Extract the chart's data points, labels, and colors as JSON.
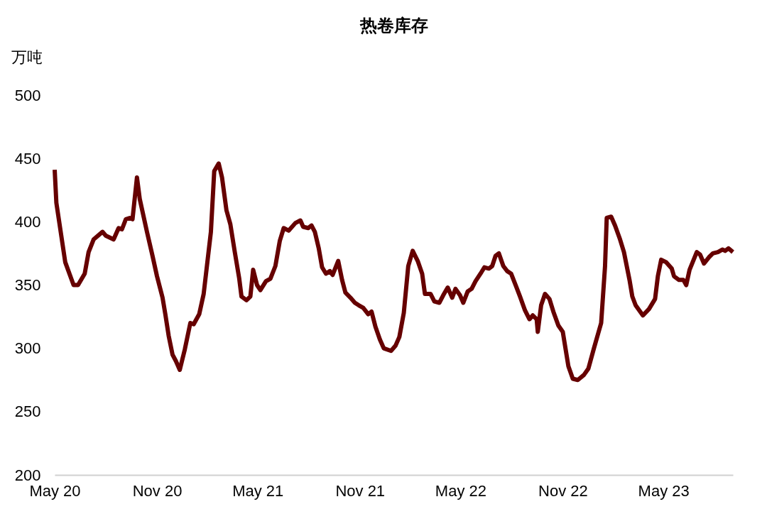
{
  "chart_data": {
    "type": "line",
    "title": "热卷库存",
    "ylabel": "万吨",
    "x": [
      "2020-05-01",
      "2020-05-04",
      "2020-05-20",
      "2020-06-04",
      "2020-06-12",
      "2020-06-24",
      "2020-07-01",
      "2020-07-10",
      "2020-07-26",
      "2020-08-01",
      "2020-08-15",
      "2020-08-24",
      "2020-08-30",
      "2020-09-06",
      "2020-09-13",
      "2020-09-18",
      "2020-09-26",
      "2020-10-01",
      "2020-10-14",
      "2020-10-24",
      "2020-11-01",
      "2020-11-11",
      "2020-11-16",
      "2020-11-22",
      "2020-11-29",
      "2020-12-05",
      "2020-12-12",
      "2020-12-21",
      "2020-12-31",
      "2021-01-06",
      "2021-01-16",
      "2021-01-24",
      "2021-02-06",
      "2021-02-12",
      "2021-02-20",
      "2021-02-26",
      "2021-03-06",
      "2021-03-13",
      "2021-03-21",
      "2021-03-29",
      "2021-04-02",
      "2021-04-11",
      "2021-04-18",
      "2021-04-23",
      "2021-04-30",
      "2021-05-06",
      "2021-05-16",
      "2021-05-24",
      "2021-06-02",
      "2021-06-10",
      "2021-06-17",
      "2021-06-26",
      "2021-07-08",
      "2021-07-17",
      "2021-07-22",
      "2021-07-31",
      "2021-08-06",
      "2021-08-12",
      "2021-08-19",
      "2021-08-25",
      "2021-09-01",
      "2021-09-08",
      "2021-09-13",
      "2021-09-23",
      "2021-09-30",
      "2021-10-06",
      "2021-10-15",
      "2021-10-23",
      "2021-10-30",
      "2021-11-07",
      "2021-11-16",
      "2021-11-22",
      "2021-11-29",
      "2021-12-07",
      "2021-12-14",
      "2021-12-27",
      "2022-01-04",
      "2022-01-11",
      "2022-01-19",
      "2022-01-27",
      "2022-02-04",
      "2022-02-13",
      "2022-02-21",
      "2022-02-26",
      "2022-03-08",
      "2022-03-15",
      "2022-03-24",
      "2022-03-31",
      "2022-04-08",
      "2022-04-16",
      "2022-04-22",
      "2022-04-30",
      "2022-05-06",
      "2022-05-14",
      "2022-05-21",
      "2022-05-28",
      "2022-06-06",
      "2022-06-13",
      "2022-06-21",
      "2022-06-27",
      "2022-07-03",
      "2022-07-09",
      "2022-07-17",
      "2022-07-24",
      "2022-07-31",
      "2022-08-09",
      "2022-08-16",
      "2022-08-25",
      "2022-09-02",
      "2022-09-08",
      "2022-09-15",
      "2022-09-17",
      "2022-09-23",
      "2022-09-30",
      "2022-10-08",
      "2022-10-15",
      "2022-10-24",
      "2022-11-01",
      "2022-11-11",
      "2022-11-19",
      "2022-11-28",
      "2022-12-09",
      "2022-12-17",
      "2022-12-27",
      "2023-01-09",
      "2023-01-16",
      "2023-01-19",
      "2023-01-27",
      "2023-02-03",
      "2023-02-12",
      "2023-02-19",
      "2023-03-01",
      "2023-03-06",
      "2023-03-12",
      "2023-03-25",
      "2023-04-05",
      "2023-04-16",
      "2023-04-21",
      "2023-04-27",
      "2023-05-06",
      "2023-05-16",
      "2023-05-20",
      "2023-05-29",
      "2023-06-06",
      "2023-06-11",
      "2023-06-17",
      "2023-06-30",
      "2023-07-06",
      "2023-07-13",
      "2023-07-22",
      "2023-07-29",
      "2023-08-07",
      "2023-08-15",
      "2023-08-20",
      "2023-08-26",
      "2023-09-03"
    ],
    "series": [
      {
        "color": "#660000",
        "values": [
          441,
          415,
          368,
          350,
          350,
          359,
          376,
          386,
          392,
          389,
          386,
          395,
          394,
          402,
          403,
          402,
          435,
          418,
          392,
          373,
          357,
          340,
          327,
          310,
          295,
          290,
          283,
          299,
          320,
          319,
          327,
          343,
          392,
          440,
          446,
          435,
          409,
          398,
          376,
          355,
          341,
          338,
          341,
          362,
          350,
          346,
          353,
          355,
          365,
          385,
          395,
          393,
          399,
          401,
          396,
          395,
          397,
          392,
          379,
          364,
          359,
          361,
          358,
          369,
          354,
          344,
          340,
          336,
          334,
          332,
          327,
          329,
          317,
          307,
          300,
          298,
          302,
          309,
          328,
          365,
          377,
          369,
          359,
          343,
          343,
          337,
          336,
          342,
          348,
          340,
          347,
          342,
          336,
          345,
          347,
          353,
          359,
          364,
          363,
          365,
          373,
          375,
          365,
          361,
          359,
          349,
          341,
          330,
          323,
          326,
          323,
          313,
          334,
          343,
          339,
          329,
          318,
          313,
          286,
          276,
          275,
          279,
          284,
          300,
          320,
          365,
          403,
          404,
          397,
          386,
          376,
          354,
          341,
          334,
          326,
          331,
          339,
          357,
          370,
          368,
          363,
          357,
          354,
          354,
          350,
          362,
          376,
          374,
          367,
          372,
          375,
          376,
          378,
          377,
          379,
          376
        ]
      }
    ],
    "xlim": [
      "2020-05-01",
      "2023-09-03"
    ],
    "xticks": [
      {
        "value": "2020-05-01",
        "label": "May 20"
      },
      {
        "value": "2020-11-01",
        "label": "Nov 20"
      },
      {
        "value": "2021-05-01",
        "label": "May 21"
      },
      {
        "value": "2021-11-01",
        "label": "Nov 21"
      },
      {
        "value": "2022-05-01",
        "label": "May 22"
      },
      {
        "value": "2022-11-01",
        "label": "Nov 22"
      },
      {
        "value": "2023-05-01",
        "label": "May 23"
      }
    ],
    "ylim": [
      200,
      500
    ],
    "yticks": [
      200,
      250,
      300,
      350,
      400,
      450,
      500
    ],
    "grid": false,
    "legend": false,
    "marker": "none",
    "line_style": "solid"
  }
}
